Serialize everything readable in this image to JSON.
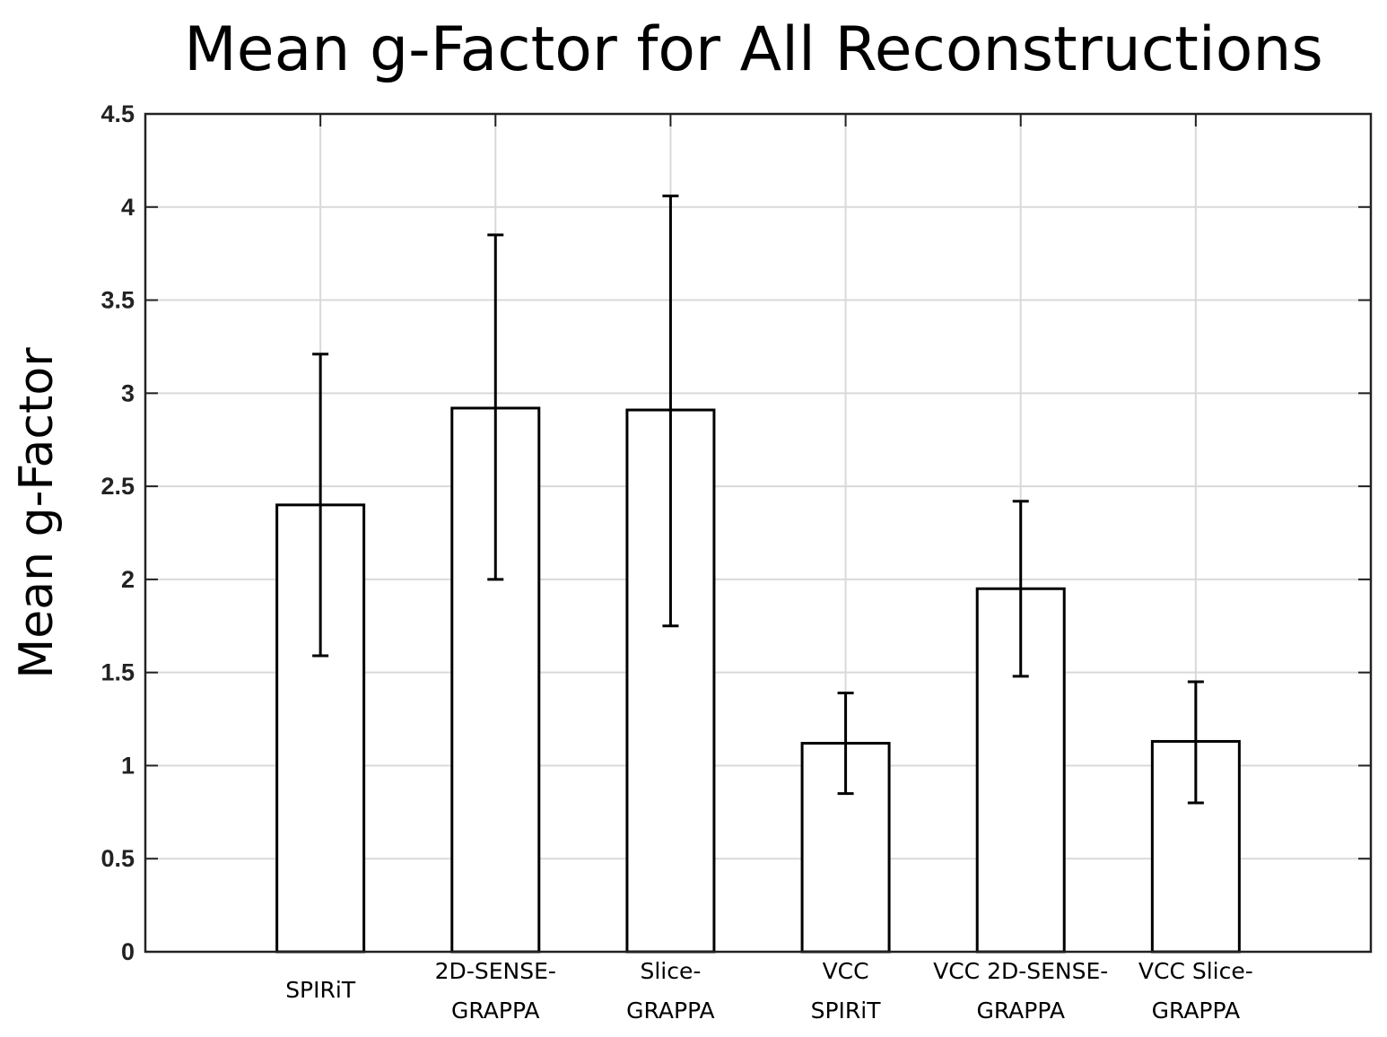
{
  "chart_data": {
    "type": "bar",
    "title": "Mean g-Factor for All Reconstructions",
    "xlabel": "",
    "ylabel": "Mean g-Factor",
    "ylim": [
      0,
      4.5
    ],
    "yticks": [
      "0",
      "0.5",
      "1",
      "1.5",
      "2",
      "2.5",
      "3",
      "3.5",
      "4",
      "4.5"
    ],
    "categories": [
      [
        "SPIRiT"
      ],
      [
        "2D-SENSE-",
        "GRAPPA"
      ],
      [
        "Slice-",
        "GRAPPA"
      ],
      [
        "VCC",
        "SPIRiT"
      ],
      [
        "VCC 2D-SENSE-",
        "GRAPPA"
      ],
      [
        "VCC Slice-",
        "GRAPPA"
      ]
    ],
    "values": [
      2.4,
      2.92,
      2.91,
      1.12,
      1.95,
      1.13
    ],
    "error_low": [
      1.59,
      2.0,
      1.75,
      0.85,
      1.48,
      0.8
    ],
    "error_high": [
      3.21,
      3.85,
      4.06,
      1.39,
      2.42,
      1.45
    ],
    "grid": true,
    "colors": {
      "bar_fill": "#ffffff",
      "bar_edge": "#000000",
      "grid": "#d9d9d9"
    }
  }
}
